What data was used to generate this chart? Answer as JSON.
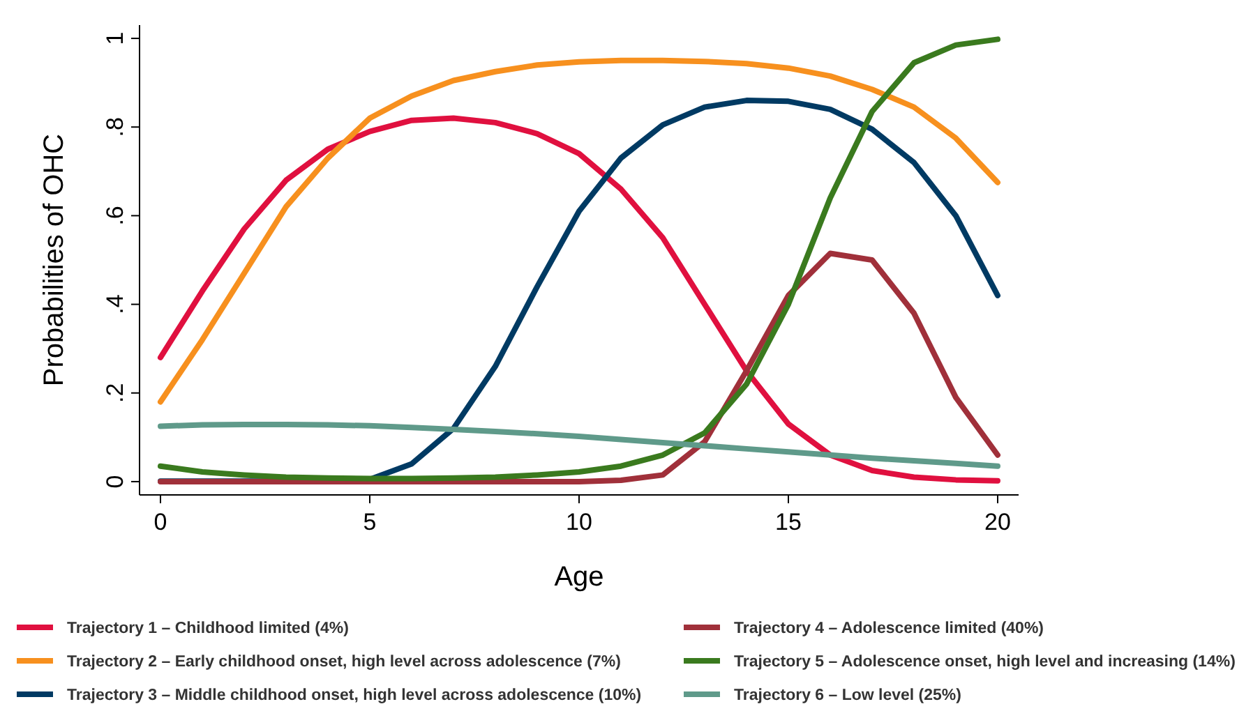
{
  "chart_data": {
    "type": "line",
    "xlabel": "Age",
    "ylabel": "Probabilities of OHC",
    "x": [
      0,
      1,
      2,
      3,
      4,
      5,
      6,
      7,
      8,
      9,
      10,
      11,
      12,
      13,
      14,
      15,
      16,
      17,
      18,
      19,
      20
    ],
    "xlim": [
      -0.5,
      20.5
    ],
    "ylim": [
      -0.03,
      1.03
    ],
    "xticks": [
      0,
      5,
      10,
      15,
      20
    ],
    "yticks": [
      {
        "value": 0,
        "label": "0"
      },
      {
        "value": 0.2,
        "label": ".2"
      },
      {
        "value": 0.4,
        "label": ".4"
      },
      {
        "value": 0.6,
        "label": ".6"
      },
      {
        "value": 0.8,
        "label": ".8"
      },
      {
        "value": 1,
        "label": "1"
      }
    ],
    "grid": false,
    "legend": "bottom",
    "marker": "none",
    "line_style": "solid",
    "series": [
      {
        "name": "Trajectory 1 – Childhood limited (4%)",
        "color": "#e0103f",
        "values": [
          0.28,
          0.43,
          0.57,
          0.68,
          0.75,
          0.79,
          0.815,
          0.82,
          0.81,
          0.785,
          0.74,
          0.66,
          0.55,
          0.4,
          0.25,
          0.13,
          0.06,
          0.025,
          0.01,
          0.004,
          0.002
        ]
      },
      {
        "name": "Trajectory 2 – Early childhood onset, high level across adolescence (7%)",
        "color": "#f7901e",
        "values": [
          0.18,
          0.32,
          0.47,
          0.62,
          0.73,
          0.82,
          0.87,
          0.905,
          0.925,
          0.94,
          0.947,
          0.95,
          0.95,
          0.948,
          0.943,
          0.933,
          0.915,
          0.885,
          0.845,
          0.775,
          0.675
        ]
      },
      {
        "name": "Trajectory 3 – Middle childhood onset, high level across adolescence (10%)",
        "color": "#003a63",
        "values": [
          0.001,
          0.001,
          0.001,
          0.001,
          0.001,
          0.005,
          0.04,
          0.12,
          0.26,
          0.44,
          0.61,
          0.73,
          0.805,
          0.845,
          0.86,
          0.858,
          0.84,
          0.795,
          0.72,
          0.6,
          0.42
        ]
      },
      {
        "name": "Trajectory 4 – Adolescence limited (40%)",
        "color": "#a0303a",
        "values": [
          0,
          0,
          0,
          0,
          0,
          0,
          0,
          0,
          0,
          0,
          0,
          0.003,
          0.015,
          0.09,
          0.25,
          0.42,
          0.515,
          0.5,
          0.38,
          0.19,
          0.06
        ]
      },
      {
        "name": "Trajectory 5 – Adolescence onset, high level and increasing (14%)",
        "color": "#3a7a1e",
        "values": [
          0.035,
          0.022,
          0.015,
          0.01,
          0.008,
          0.007,
          0.007,
          0.008,
          0.01,
          0.015,
          0.022,
          0.035,
          0.06,
          0.11,
          0.22,
          0.4,
          0.64,
          0.835,
          0.945,
          0.985,
          0.998
        ]
      },
      {
        "name": "Trajectory 6 – Low level (25%)",
        "color": "#5f9a8a",
        "values": [
          0.125,
          0.128,
          0.129,
          0.129,
          0.128,
          0.126,
          0.122,
          0.118,
          0.113,
          0.108,
          0.102,
          0.095,
          0.088,
          0.081,
          0.074,
          0.067,
          0.06,
          0.053,
          0.047,
          0.041,
          0.035
        ]
      }
    ]
  }
}
